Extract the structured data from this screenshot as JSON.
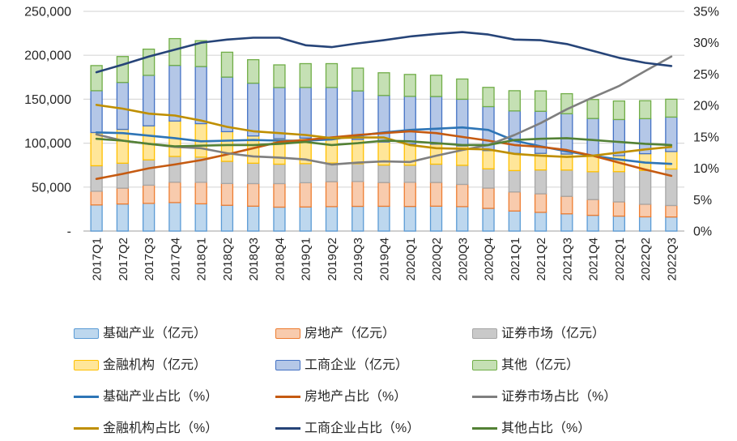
{
  "chart_data": {
    "type": "bar",
    "subtype": "stacked-bar-with-percentage-lines",
    "title": "",
    "xlabel": "",
    "ylabel": "",
    "grid": true,
    "legend_position": "bottom",
    "categories": [
      "2017Q1",
      "2017Q2",
      "2017Q3",
      "2017Q4",
      "2018Q1",
      "2018Q2",
      "2018Q3",
      "2018Q4",
      "2019Q1",
      "2019Q2",
      "2019Q3",
      "2019Q4",
      "2020Q1",
      "2020Q2",
      "2020Q3",
      "2020Q4",
      "2021Q1",
      "2021Q2",
      "2021Q3",
      "2021Q4",
      "2022Q1",
      "2022Q2",
      "2022Q3"
    ],
    "left_axis": {
      "min": 0,
      "max": 250000,
      "tick_labels": [
        "250,000",
        "200,000",
        "150,000",
        "100,000",
        "50,000",
        "-"
      ],
      "tick_values": [
        250000,
        200000,
        150000,
        100000,
        50000,
        0
      ]
    },
    "right_axis": {
      "min": 0,
      "max": 35,
      "tick_labels": [
        "35%",
        "30%",
        "25%",
        "20%",
        "15%",
        "10%",
        "5%",
        "0%"
      ],
      "tick_values": [
        35,
        30,
        25,
        20,
        15,
        10,
        5,
        0
      ]
    },
    "bar_series": [
      {
        "name": "基础产业（亿元）",
        "fill": "#BDD7EE",
        "stroke": "#5B9BD5",
        "values": [
          29700,
          30800,
          31500,
          32400,
          31000,
          29300,
          28300,
          27200,
          27400,
          27800,
          28100,
          28200,
          28000,
          28300,
          27800,
          25800,
          22800,
          21300,
          19600,
          17900,
          17000,
          16200,
          16000
        ]
      },
      {
        "name": "房地产（亿元）",
        "fill": "#F8CBAD",
        "stroke": "#ED7D31",
        "values": [
          15600,
          18000,
          20700,
          23200,
          24500,
          24800,
          25700,
          26800,
          27600,
          28400,
          28300,
          27000,
          27500,
          27000,
          25300,
          23100,
          21700,
          21100,
          19900,
          17900,
          16200,
          14300,
          13100
        ]
      },
      {
        "name": "证券市场（亿元）",
        "fill": "#C9C9C9",
        "stroke": "#A6A6A6",
        "values": [
          29000,
          28400,
          28800,
          29300,
          28600,
          25200,
          23200,
          22100,
          21700,
          21200,
          20200,
          19900,
          19500,
          20800,
          21700,
          21900,
          24300,
          27100,
          29900,
          31700,
          34400,
          38500,
          41500
        ]
      },
      {
        "name": "金融机构（亿元）",
        "fill": "#FFE699",
        "stroke": "#FFC000",
        "values": [
          37800,
          38500,
          38700,
          40300,
          38100,
          33800,
          31000,
          29000,
          29100,
          28200,
          27600,
          26200,
          24100,
          22800,
          22000,
          20800,
          19500,
          18900,
          18200,
          17900,
          18200,
          19000,
          19900
        ]
      },
      {
        "name": "工商企业（亿元）",
        "fill": "#B4C7E7",
        "stroke": "#4472C4",
        "values": [
          47600,
          53400,
          57500,
          63300,
          65000,
          62100,
          60100,
          58200,
          57600,
          57800,
          55300,
          53000,
          54200,
          54200,
          53200,
          50000,
          48400,
          47900,
          45900,
          42700,
          41100,
          39900,
          39200
        ]
      },
      {
        "name": "其他（亿元）",
        "fill": "#C5E0B4",
        "stroke": "#70AD47",
        "values": [
          28600,
          29500,
          29800,
          30500,
          29400,
          28300,
          26700,
          25800,
          27100,
          27100,
          25900,
          25800,
          24900,
          24200,
          23000,
          21900,
          23000,
          23200,
          22800,
          21600,
          21100,
          20400,
          20300
        ]
      }
    ],
    "line_series": [
      {
        "name": "基础产业占比（%）",
        "color": "#2E75B6",
        "values": [
          15.7,
          15.6,
          15.2,
          14.8,
          14.3,
          14.4,
          14.5,
          14.4,
          14.4,
          14.6,
          15.2,
          15.7,
          16.1,
          16.3,
          16.5,
          16.1,
          14.4,
          13.5,
          12.7,
          12.0,
          11.4,
          10.9,
          10.7
        ]
      },
      {
        "name": "房地产占比（%）",
        "color": "#C55A11",
        "values": [
          8.3,
          9.1,
          10.0,
          10.6,
          11.3,
          12.2,
          13.2,
          14.2,
          14.5,
          14.9,
          15.3,
          15.6,
          15.9,
          15.6,
          15.0,
          14.4,
          13.7,
          13.4,
          12.9,
          12.0,
          10.9,
          9.8,
          8.8
        ]
      },
      {
        "name": "证券市场占比（%）",
        "color": "#7F7F7F",
        "values": [
          15.4,
          14.4,
          13.9,
          13.4,
          13.2,
          12.4,
          11.9,
          11.7,
          11.4,
          10.6,
          10.9,
          11.1,
          11.0,
          12.0,
          12.9,
          13.7,
          15.3,
          17.2,
          19.4,
          21.3,
          23.1,
          25.5,
          27.8
        ]
      },
      {
        "name": "金融机构占比（%）",
        "color": "#BF8F00",
        "values": [
          20.1,
          19.5,
          18.7,
          18.4,
          17.6,
          16.6,
          15.9,
          15.6,
          15.3,
          14.8,
          14.9,
          14.9,
          13.7,
          13.2,
          13.1,
          13.0,
          12.3,
          12.0,
          11.8,
          12.0,
          12.5,
          13.0,
          13.4
        ]
      },
      {
        "name": "工商企业占比（%）",
        "color": "#264478",
        "values": [
          25.3,
          26.5,
          27.8,
          28.9,
          30.0,
          30.5,
          30.8,
          30.8,
          29.6,
          29.3,
          29.9,
          30.4,
          31.0,
          31.4,
          31.7,
          31.3,
          30.5,
          30.4,
          29.8,
          28.7,
          27.6,
          26.8,
          26.3
        ]
      },
      {
        "name": "其他占比（%）",
        "color": "#538135",
        "values": [
          14.7,
          14.4,
          13.9,
          13.5,
          13.6,
          13.7,
          13.7,
          13.9,
          14.2,
          13.7,
          14.0,
          14.4,
          14.3,
          14.0,
          13.7,
          13.7,
          14.5,
          14.7,
          14.8,
          14.5,
          14.2,
          13.9,
          13.7
        ]
      }
    ],
    "colors": {
      "gridline": "#D9D9D9",
      "axis_line": "#BFBFBF",
      "tick_text": "#262626"
    }
  }
}
